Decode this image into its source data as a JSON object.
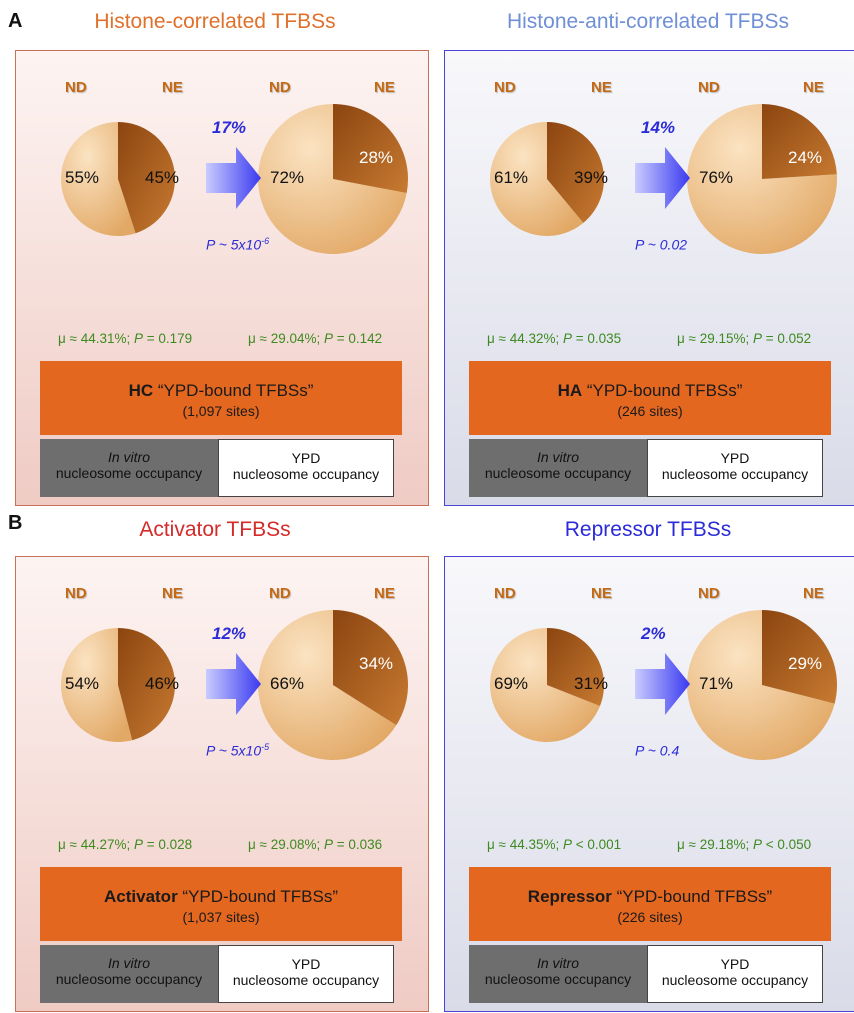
{
  "section_labels": [
    "A",
    "B"
  ],
  "headers": {
    "nd": "ND",
    "ne": "NE"
  },
  "legend": {
    "invitro_italic": "In vitro",
    "invitro_rest": "nucleosome occupancy",
    "ypd_line1": "YPD",
    "ypd_line2": "nucleosome occupancy"
  },
  "colors": {
    "orange": "#e3671f",
    "dark_pie": "#a85a1b",
    "light_pie": "#f2c28a",
    "blue_text": "#2b2bd8",
    "green_text": "#3e8a20"
  },
  "chart_data": [
    {
      "type": "pie",
      "title": "Histone-correlated TFBSs",
      "title_color": "#e0702a",
      "change": "17%",
      "pvalue": "P ~ 5x10",
      "pvalue_exp": "-6",
      "before": {
        "labels": [
          "ND",
          "NE"
        ],
        "values": [
          55,
          45
        ],
        "text": [
          "55%",
          "45%"
        ]
      },
      "after": {
        "labels": [
          "ND",
          "NE"
        ],
        "values": [
          72,
          28
        ],
        "text": [
          "72%",
          "28%"
        ]
      },
      "stat_left": {
        "mu": "μ ≈ 44.31%; ",
        "p": "P",
        "rest": " = 0.179"
      },
      "stat_right": {
        "mu": "μ ≈ 29.04%; ",
        "p": "P",
        "rest": " = 0.142"
      },
      "box_bold": "HC",
      "box_rest": " “YPD-bound TFBSs”",
      "box_sites": "(1,097 sites)"
    },
    {
      "type": "pie",
      "title": "Histone-anti-correlated TFBSs",
      "title_color": "#6f8fd6",
      "change": "14%",
      "pvalue": "P ~ 0.02",
      "pvalue_exp": "",
      "before": {
        "labels": [
          "ND",
          "NE"
        ],
        "values": [
          61,
          39
        ],
        "text": [
          "61%",
          "39%"
        ]
      },
      "after": {
        "labels": [
          "ND",
          "NE"
        ],
        "values": [
          76,
          24
        ],
        "text": [
          "76%",
          "24%"
        ]
      },
      "stat_left": {
        "mu": "μ ≈ 44.32%; ",
        "p": "P",
        "rest": " = 0.035"
      },
      "stat_right": {
        "mu": "μ ≈ 29.15%; ",
        "p": "P",
        "rest": " = 0.052"
      },
      "box_bold": "HA",
      "box_rest": " “YPD-bound TFBSs”",
      "box_sites": "(246 sites)"
    },
    {
      "type": "pie",
      "title": "Activator TFBSs",
      "title_color": "#d42a2a",
      "change": "12%",
      "pvalue": "P ~ 5x10",
      "pvalue_exp": "-5",
      "before": {
        "labels": [
          "ND",
          "NE"
        ],
        "values": [
          54,
          46
        ],
        "text": [
          "54%",
          "46%"
        ]
      },
      "after": {
        "labels": [
          "ND",
          "NE"
        ],
        "values": [
          66,
          34
        ],
        "text": [
          "66%",
          "34%"
        ]
      },
      "stat_left": {
        "mu": "μ ≈ 44.27%; ",
        "p": "P",
        "rest": " = 0.028"
      },
      "stat_right": {
        "mu": "μ ≈ 29.08%; ",
        "p": "P",
        "rest": " = 0.036"
      },
      "box_bold": "Activator",
      "box_rest": " “YPD-bound TFBSs”",
      "box_sites": "(1,037 sites)"
    },
    {
      "type": "pie",
      "title": "Repressor TFBSs",
      "title_color": "#2b2bd8",
      "change": "2%",
      "pvalue": "P ~ 0.4",
      "pvalue_exp": "",
      "before": {
        "labels": [
          "ND",
          "NE"
        ],
        "values": [
          69,
          31
        ],
        "text": [
          "69%",
          "31%"
        ]
      },
      "after": {
        "labels": [
          "ND",
          "NE"
        ],
        "values": [
          71,
          29
        ],
        "text": [
          "71%",
          "29%"
        ]
      },
      "stat_left": {
        "mu": "μ ≈ 44.35%; ",
        "p": "P",
        "rest": " < 0.001"
      },
      "stat_right": {
        "mu": "μ ≈ 29.18%; ",
        "p": "P",
        "rest": " < 0.050"
      },
      "box_bold": "Repressor",
      "box_rest": " “YPD-bound TFBSs”",
      "box_sites": "(226 sites)"
    }
  ]
}
